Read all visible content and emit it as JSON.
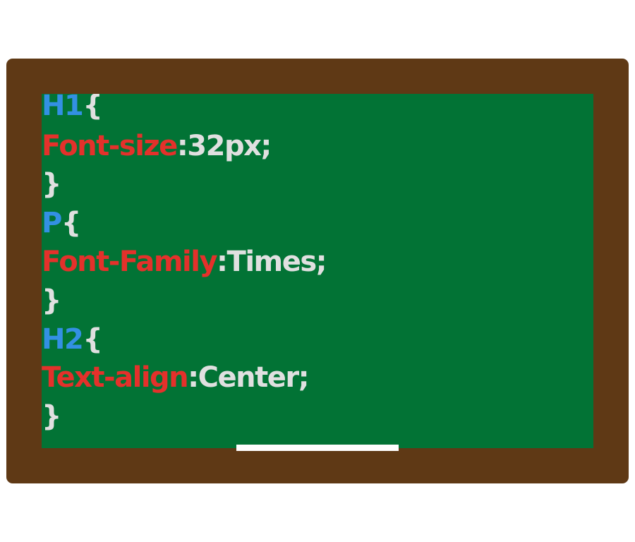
{
  "colors": {
    "frame": "#5f3915",
    "board": "#027335",
    "selector": "#3390e3",
    "property": "#e4312b",
    "value": "#e0e0e0",
    "tray": "#ffffff"
  },
  "code": {
    "rule1": {
      "selector": "H1",
      "open": "{",
      "property": "Font-size",
      "value": ":32px;",
      "close": "}"
    },
    "rule2": {
      "selector": "P",
      "open": "{",
      "property": "Font-Family",
      "value": ":Times;",
      "close": "}"
    },
    "rule3": {
      "selector": "H2",
      "open": "{",
      "property": "Text-align",
      "value": ":Center;",
      "close": "}"
    }
  }
}
